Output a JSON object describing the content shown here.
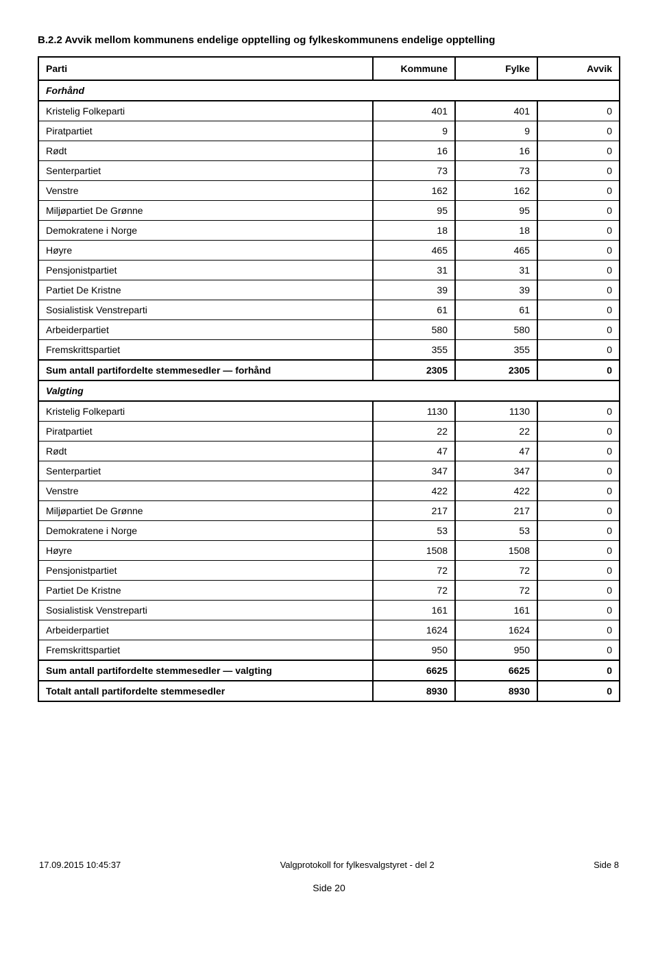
{
  "heading": "B.2.2 Avvik mellom kommunens endelige opptelling og fylkeskommunens endelige opptelling",
  "columns": {
    "c1": "Parti",
    "c2": "Kommune",
    "c3": "Fylke",
    "c4": "Avvik"
  },
  "sections": [
    {
      "label": "Forhånd",
      "rows": [
        {
          "name": "Kristelig Folkeparti",
          "a": 401,
          "b": 401,
          "c": 0
        },
        {
          "name": "Piratpartiet",
          "a": 9,
          "b": 9,
          "c": 0
        },
        {
          "name": "Rødt",
          "a": 16,
          "b": 16,
          "c": 0
        },
        {
          "name": "Senterpartiet",
          "a": 73,
          "b": 73,
          "c": 0
        },
        {
          "name": "Venstre",
          "a": 162,
          "b": 162,
          "c": 0
        },
        {
          "name": "Miljøpartiet De Grønne",
          "a": 95,
          "b": 95,
          "c": 0
        },
        {
          "name": "Demokratene i Norge",
          "a": 18,
          "b": 18,
          "c": 0
        },
        {
          "name": "Høyre",
          "a": 465,
          "b": 465,
          "c": 0
        },
        {
          "name": "Pensjonistpartiet",
          "a": 31,
          "b": 31,
          "c": 0
        },
        {
          "name": "Partiet De Kristne",
          "a": 39,
          "b": 39,
          "c": 0
        },
        {
          "name": "Sosialistisk Venstreparti",
          "a": 61,
          "b": 61,
          "c": 0
        },
        {
          "name": "Arbeiderpartiet",
          "a": 580,
          "b": 580,
          "c": 0
        },
        {
          "name": "Fremskrittspartiet",
          "a": 355,
          "b": 355,
          "c": 0
        }
      ],
      "sum": {
        "name": "Sum antall partifordelte stemmesedler — forhånd",
        "a": 2305,
        "b": 2305,
        "c": 0
      }
    },
    {
      "label": "Valgting",
      "rows": [
        {
          "name": "Kristelig Folkeparti",
          "a": 1130,
          "b": 1130,
          "c": 0
        },
        {
          "name": "Piratpartiet",
          "a": 22,
          "b": 22,
          "c": 0
        },
        {
          "name": "Rødt",
          "a": 47,
          "b": 47,
          "c": 0
        },
        {
          "name": "Senterpartiet",
          "a": 347,
          "b": 347,
          "c": 0
        },
        {
          "name": "Venstre",
          "a": 422,
          "b": 422,
          "c": 0
        },
        {
          "name": "Miljøpartiet De Grønne",
          "a": 217,
          "b": 217,
          "c": 0
        },
        {
          "name": "Demokratene i Norge",
          "a": 53,
          "b": 53,
          "c": 0
        },
        {
          "name": "Høyre",
          "a": 1508,
          "b": 1508,
          "c": 0
        },
        {
          "name": "Pensjonistpartiet",
          "a": 72,
          "b": 72,
          "c": 0
        },
        {
          "name": "Partiet De Kristne",
          "a": 72,
          "b": 72,
          "c": 0
        },
        {
          "name": "Sosialistisk Venstreparti",
          "a": 161,
          "b": 161,
          "c": 0
        },
        {
          "name": "Arbeiderpartiet",
          "a": 1624,
          "b": 1624,
          "c": 0
        },
        {
          "name": "Fremskrittspartiet",
          "a": 950,
          "b": 950,
          "c": 0
        }
      ],
      "sum": {
        "name": "Sum antall partifordelte stemmesedler — valgting",
        "a": 6625,
        "b": 6625,
        "c": 0
      }
    }
  ],
  "total": {
    "name": "Totalt antall partifordelte stemmesedler",
    "a": 8930,
    "b": 8930,
    "c": 0
  },
  "footer": {
    "left": "17.09.2015 10:45:37",
    "center": "Valgprotokoll for fylkesvalgstyret - del 2",
    "right": "Side 8"
  },
  "page_num": "Side 20"
}
